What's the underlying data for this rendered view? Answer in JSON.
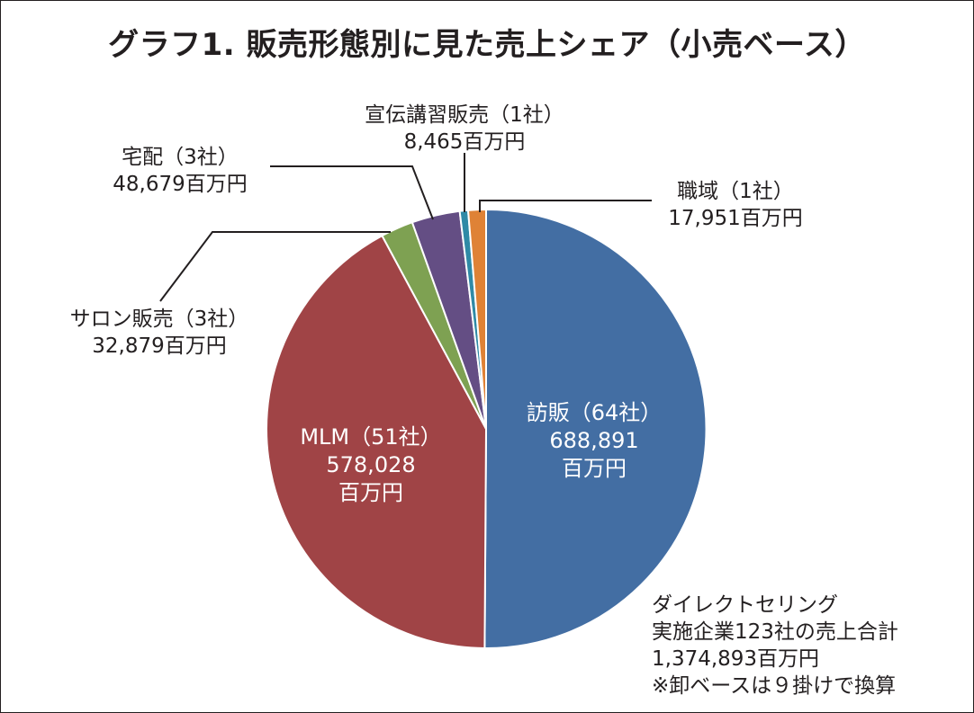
{
  "chart_data": {
    "type": "pie",
    "title": "グラフ1. 販売形態別に見た売上シェア（小売ベース）",
    "start_angle_deg": 0,
    "direction": "clockwise",
    "slices": [
      {
        "key": "houhan",
        "category": "訪販（64社）",
        "value": 688891,
        "value_text": "688,891",
        "unit": "百万円",
        "color": "#436ea3"
      },
      {
        "key": "mlm",
        "category": "MLM（51社）",
        "value": 578028,
        "value_text": "578,028",
        "unit": "百万円",
        "color": "#a04446"
      },
      {
        "key": "salon",
        "category": "サロン販売（3社）",
        "value": 32879,
        "value_text": "32,879",
        "unit": "百万円",
        "color": "#7ea152"
      },
      {
        "key": "takuhai",
        "category": "宅配（3社）",
        "value": 48679,
        "value_text": "48,679",
        "unit": "百万円",
        "color": "#644e84"
      },
      {
        "key": "senden",
        "category": "宣伝講習販売（1社）",
        "value": 8465,
        "value_text": "8,465",
        "unit": "百万円",
        "color": "#2f8aa6"
      },
      {
        "key": "shokuiki",
        "category": "職域（1社）",
        "value": 17951,
        "value_text": "17,951",
        "unit": "百万円",
        "color": "#df8236"
      }
    ],
    "note": [
      "ダイレクトセリング",
      "実施企業123社の売上合計",
      "1,374,893百万円",
      "※卸ベースは９掛けで換算"
    ]
  }
}
